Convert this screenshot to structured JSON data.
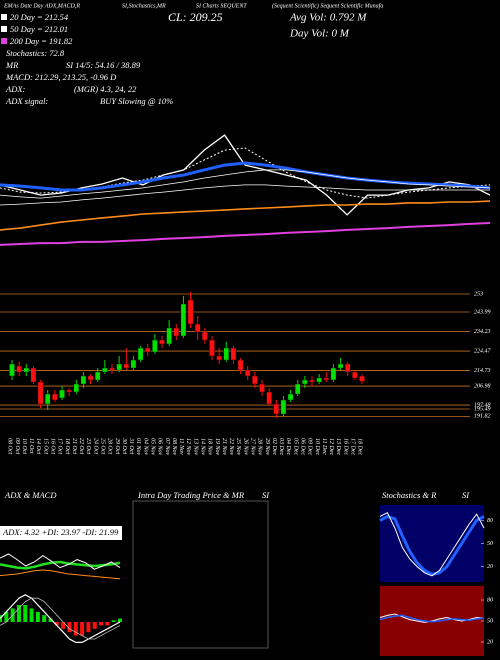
{
  "header": [
    "EMAs Date Day ADX,MACD,R",
    "SI,Stochastics,MR",
    "SI Charts SEQUENT",
    "(Sequent Scientific) Sequent Scientific Munafa"
  ],
  "indicators": {
    "sma20": "20 Day = 212.54",
    "sma50": "50 Day = 212.01",
    "sma200": "200 Day = 191.82",
    "stoch": "Stochastics: 72.8",
    "mrsi_label": "MR",
    "rsi": "SI 14/5: 54.16 / 38.89",
    "macd": "MACD: 212.29, 213.25, -0.96 D",
    "adx_label": "ADX:",
    "adx": "(MGR) 4.3, 24, 22",
    "adx_signal_label": "ADX signal:",
    "adx_signal": "BUY Slowing @ 10%"
  },
  "close": "CL: 209.25",
  "avg_vol": "Avg Vol: 0.792 M",
  "day_vol": "Day Vol: 0 M",
  "intraday_panel": {
    "title": [
      "Intra Day Trading Price & MR",
      "SI"
    ]
  },
  "chart_data": [
    {
      "type": "line",
      "ylim": [
        180,
        260
      ],
      "series": [
        {
          "color": "#ffffff",
          "width": 1.3,
          "values": [
            214.7,
            212,
            209.3,
            210.4,
            213.1,
            215.2,
            218.4,
            214.7,
            220,
            222.7,
            233.3,
            241.3,
            225.3,
            222.7,
            220,
            217.3,
            209.3,
            198.7,
            209.3,
            209.3,
            212,
            213.1,
            216.3,
            214.7,
            209.3
          ]
        },
        {
          "color": "#ffffff",
          "width": 1,
          "dash": true,
          "values": [
            213.1,
            210.9,
            210.4,
            210.9,
            212,
            213.6,
            215.7,
            217.3,
            220,
            222.7,
            228,
            233.3,
            234.4,
            228,
            221.6,
            216.3,
            212,
            209.3,
            207.7,
            209.3,
            210.9,
            212,
            213.1,
            214.1,
            214.7
          ]
        },
        {
          "color": "#2060ff",
          "width": 3,
          "values": [
            214.7,
            214.1,
            213.1,
            212,
            212,
            213.1,
            214.7,
            216.3,
            218.4,
            220,
            222.7,
            225.3,
            226.4,
            225.3,
            223.7,
            221.6,
            220,
            218.4,
            217.3,
            216.3,
            215.7,
            215.2,
            214.7,
            214.1,
            213.1
          ]
        },
        {
          "color": "#ffffff",
          "width": 0.8,
          "values": [
            209.3,
            208.3,
            207.7,
            208.8,
            209.9,
            210.9,
            212,
            213.1,
            214.7,
            216.3,
            218.4,
            220,
            221.6,
            222.7,
            222.7,
            221.6,
            220,
            218.4,
            217.3,
            216.3,
            215.2,
            214.7,
            214.1,
            213.6,
            213.1
          ]
        },
        {
          "color": "#ffffff",
          "width": 0.8,
          "values": [
            204,
            204.5,
            205.1,
            205.6,
            206.7,
            207.7,
            208.8,
            209.9,
            210.9,
            212,
            213.1,
            214.1,
            214.7,
            214.7,
            214.1,
            213.6,
            213.1,
            212.5,
            212,
            212,
            212,
            212,
            212,
            212,
            212
          ]
        },
        {
          "color": "#ff8c1a",
          "width": 1.6,
          "values": [
            190.7,
            191.7,
            193.3,
            194.9,
            196,
            197.1,
            198.1,
            199.2,
            199.7,
            200.3,
            200.8,
            201.3,
            201.9,
            202.4,
            202.9,
            203.5,
            204,
            204,
            204.5,
            204.5,
            205.1,
            205.1,
            205.6,
            205.6,
            206.1
          ]
        },
        {
          "color": "#e040e0",
          "width": 2,
          "values": [
            182.7,
            183.2,
            183.7,
            183.7,
            184.3,
            184.3,
            184.8,
            185.3,
            185.9,
            186.4,
            186.9,
            187.5,
            188,
            188.5,
            189.1,
            189.6,
            190.1,
            190.7,
            191.2,
            191.7,
            192.3,
            192.8,
            193.3,
            193.9,
            194.4
          ]
        }
      ]
    },
    {
      "type": "candlestick",
      "up_color": "#00e000",
      "down_color": "#ff1010",
      "grid_color": "#c87020",
      "grid": true,
      "ylim": [
        185,
        255
      ],
      "yticks": [
        253,
        243.99,
        234.23,
        224.47,
        214.73,
        206.98,
        197.48,
        195.49,
        191.82
      ],
      "categories": [
        "08 Oct",
        "09 Oct",
        "10 Oct",
        "11 Oct",
        "14 Oct",
        "15 Oct",
        "16 Oct",
        "17 Oct",
        "18 Oct",
        "21 Oct",
        "22 Oct",
        "23 Oct",
        "24 Oct",
        "25 Oct",
        "28 Oct",
        "29 Oct",
        "30 Oct",
        "31 Oct",
        "01 Nov",
        "04 Nov",
        "05 Nov",
        "06 Nov",
        "07 Nov",
        "08 Nov",
        "11 Nov",
        "12 Nov",
        "13 Nov",
        "14 Nov",
        "18 Nov",
        "19 Nov",
        "21 Nov",
        "22 Nov",
        "25 Nov",
        "26 Nov",
        "27 Nov",
        "28 Nov",
        "29 Nov",
        "02 Dec",
        "03 Dec",
        "04 Dec",
        "05 Dec",
        "06 Dec",
        "09 Dec",
        "10 Dec",
        "11 Dec",
        "12 Dec",
        "13 Dec",
        "16 Dec",
        "17 Dec",
        "18 Dec"
      ],
      "open": [
        212,
        217,
        214,
        216,
        209,
        198,
        203,
        201,
        205,
        204,
        208,
        212,
        210,
        214,
        216,
        215,
        218,
        216,
        220,
        226,
        224,
        230,
        228,
        236,
        232,
        250,
        238,
        234,
        230,
        222,
        220,
        226,
        220,
        215,
        212,
        208,
        204,
        198,
        193,
        200,
        203,
        208,
        210,
        209,
        211,
        210,
        216,
        218,
        214,
        212
      ],
      "high": [
        220,
        219,
        218,
        217,
        210,
        205,
        205,
        207,
        206,
        210,
        214,
        213,
        216,
        220,
        218,
        222,
        226,
        222,
        227,
        228,
        233,
        232,
        240,
        238,
        252,
        254,
        242,
        236,
        232,
        226,
        229,
        227,
        221,
        217,
        214,
        210,
        206,
        200,
        202,
        205,
        210,
        212,
        212,
        213,
        214,
        218,
        221,
        219,
        215,
        213
      ],
      "low": [
        210,
        212,
        212,
        208,
        196,
        195,
        199,
        200,
        202,
        203,
        206,
        208,
        209,
        213,
        213,
        214,
        215,
        215,
        219,
        222,
        223,
        226,
        227,
        230,
        231,
        236,
        230,
        228,
        220,
        218,
        219,
        218,
        213,
        210,
        206,
        202,
        197,
        191,
        192,
        199,
        202,
        206,
        207,
        208,
        209,
        209,
        215,
        212,
        210,
        208
      ],
      "close": [
        218,
        214,
        216,
        209,
        198,
        203,
        200,
        205,
        204,
        208,
        212,
        210,
        214,
        216,
        215,
        218,
        216,
        220,
        226,
        224,
        230,
        228,
        236,
        232,
        248,
        238,
        234,
        230,
        222,
        220,
        226,
        220,
        215,
        212,
        208,
        204,
        198,
        193,
        200,
        203,
        208,
        210,
        209,
        211,
        210,
        216,
        218,
        214,
        211,
        209.25
      ]
    },
    {
      "type": "line",
      "title": "ADX & MACD",
      "subtitle": "ADX: 4.32  +DI: 23.97  -DI: 21.99",
      "ylim": [
        0,
        50
      ],
      "series": [
        {
          "color": "#20e020",
          "width": 2.5,
          "values": [
            22,
            20,
            18,
            17,
            19,
            22,
            24,
            25,
            23,
            22,
            21,
            20,
            21,
            22,
            24
          ]
        },
        {
          "color": "#ffffff",
          "width": 1,
          "values": [
            30,
            35,
            28,
            20,
            25,
            33,
            26,
            18,
            22,
            28,
            24,
            16,
            20,
            25,
            18
          ]
        },
        {
          "color": "#ff8c1a",
          "width": 1,
          "values": [
            8,
            9,
            10,
            12,
            14,
            15,
            14,
            12,
            10,
            9,
            8,
            7,
            6,
            5,
            4
          ]
        }
      ]
    },
    {
      "type": "macd",
      "ylim": [
        -10,
        10
      ],
      "up_color": "#00e000",
      "down_color": "#ff1010",
      "histogram": [
        2,
        3,
        4,
        5,
        5,
        4,
        3,
        2,
        1,
        -1,
        -2,
        -3,
        -4,
        -4,
        -3,
        -2,
        -1,
        -1,
        0.5,
        1
      ],
      "series": [
        {
          "color": "#ffffff",
          "width": 1.2,
          "values": [
            1,
            3,
            5,
            7,
            8,
            7,
            5,
            3,
            1,
            -1,
            -3,
            -5,
            -6,
            -6,
            -5,
            -4,
            -3,
            -2,
            -1,
            0
          ]
        },
        {
          "color": "#bbbbbb",
          "width": 0.8,
          "values": [
            -1,
            0,
            2,
            4,
            6,
            7,
            7,
            6,
            4,
            2,
            0,
            -2,
            -3,
            -4,
            -5,
            -5,
            -4,
            -3,
            -2,
            -1
          ]
        }
      ]
    },
    {
      "type": "line",
      "title": [
        "Stochastics & R",
        "SI"
      ],
      "background": "#000066",
      "ylim": [
        0,
        100
      ],
      "yticks": [
        80,
        50,
        20
      ],
      "series": [
        {
          "color": "#2060ff",
          "width": 3,
          "values": [
            80,
            85,
            82,
            60,
            40,
            25,
            15,
            10,
            12,
            20,
            35,
            50,
            65,
            80,
            85
          ]
        },
        {
          "color": "#ffffff",
          "width": 1,
          "values": [
            85,
            90,
            70,
            45,
            30,
            20,
            12,
            8,
            15,
            30,
            45,
            60,
            75,
            88,
            70
          ]
        }
      ]
    },
    {
      "type": "line",
      "background": "#880000",
      "ylim": [
        0,
        100
      ],
      "yticks": [
        80,
        50,
        20
      ],
      "series": [
        {
          "color": "#ffffff",
          "width": 1,
          "values": [
            55,
            58,
            60,
            56,
            52,
            50,
            48,
            50,
            53,
            55,
            52,
            50,
            52,
            55,
            54
          ]
        },
        {
          "color": "#2060ff",
          "width": 1.5,
          "values": [
            52,
            55,
            57,
            58,
            55,
            52,
            50,
            49,
            50,
            52,
            53,
            52,
            51,
            53,
            54
          ]
        }
      ]
    }
  ]
}
